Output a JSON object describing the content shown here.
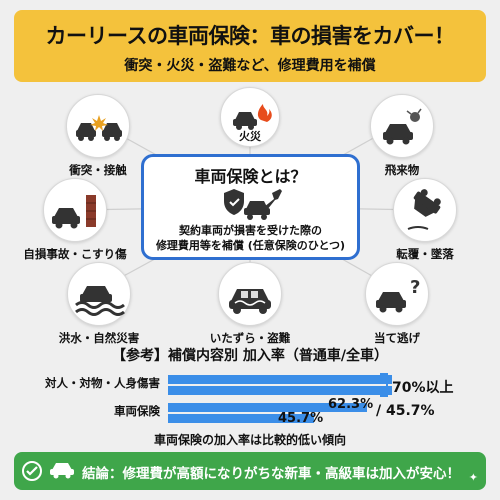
{
  "header": {
    "title": "カーリースの車両保険：車の損害をカバー！",
    "subtitle": "衝突・火災・盗難など、修理費用を補償"
  },
  "center": {
    "title": "車両保険とは？",
    "desc_line1": "契約車両が損害を受けた際の",
    "desc_line2": "修理費用等を補償 (任意保険のひとつ)"
  },
  "nodes": {
    "collision": "衝突・接触",
    "fire": "火災",
    "flying_object": "飛来物",
    "single_accident": "自損事故・こすり傷",
    "rollover": "転覆・墜落",
    "flood": "洪水・自然災害",
    "vandalism": "いたずら・盗難",
    "hit_and_run": "当て逃げ"
  },
  "reference": {
    "title": "【参考】補償内容別 加入率（普通車/全車）",
    "row1_label": "対人・対物・人身傷害",
    "row1_value": "70%以上",
    "row2_label": "車両保険",
    "row2_value_a": "62.3%",
    "row2_value_b": "/ 45.7%",
    "row3_value": "45.7%",
    "note": "車両保険の加入率は比較的低い傾向"
  },
  "chart_data": {
    "type": "bar",
    "categories": [
      "対人・対物・人身傷害",
      "車両保険"
    ],
    "series": [
      {
        "values": [
          70,
          62.3
        ]
      },
      {
        "values": [
          70,
          45.7
        ]
      }
    ],
    "value_labels": [
      "70%以上",
      "62.3% / 45.7%"
    ],
    "title": "【参考】補償内容別 加入率（普通車/全車）",
    "ylim": [
      0,
      100
    ]
  },
  "footer": {
    "text": "結論：修理費が高額になりがちな新車・高級車は加入が安心！"
  },
  "colors": {
    "header_bg": "#f4c23c",
    "accent_blue": "#2f6fd0",
    "bar_blue": "#3b8ee8",
    "footer_green": "#3fa64a"
  }
}
